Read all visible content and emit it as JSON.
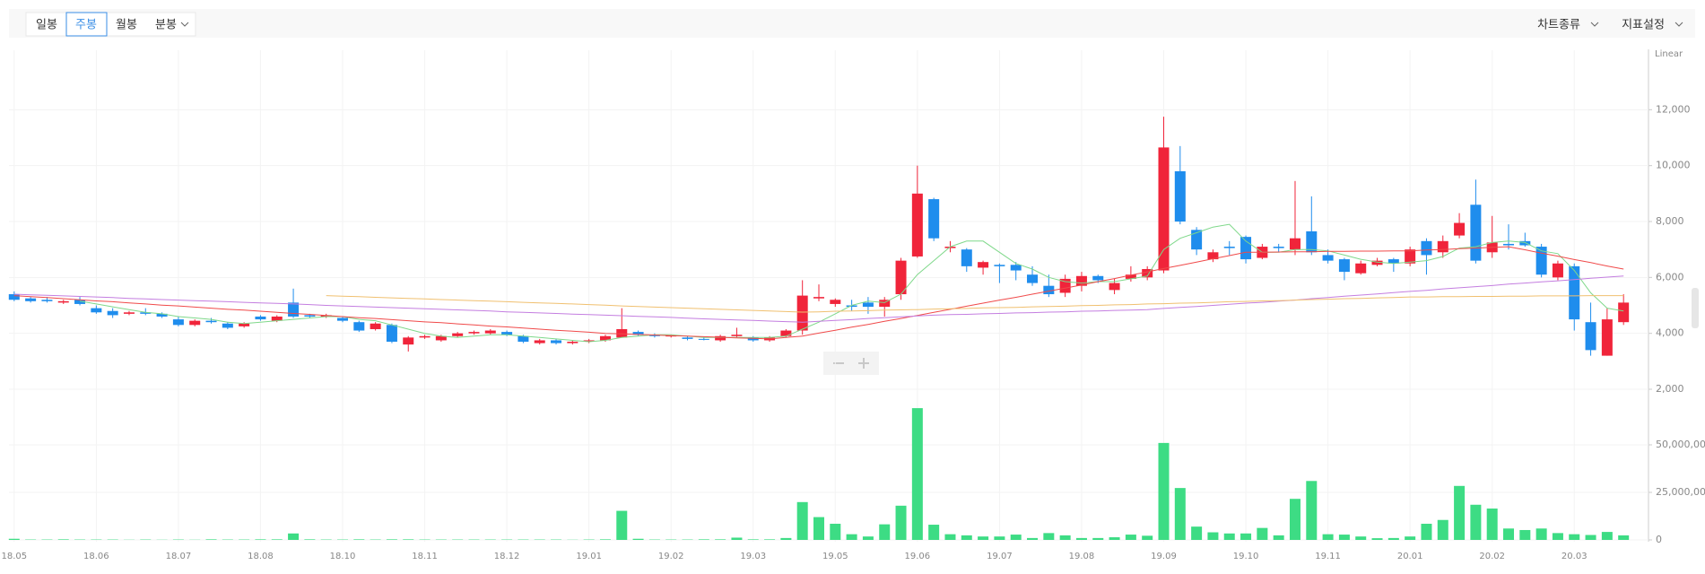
{
  "toolbar": {
    "periods": [
      "일봉",
      "주봉",
      "월봉",
      "분봉"
    ],
    "active": 1,
    "menus": [
      "차트종류",
      "지표설정"
    ]
  },
  "chart_data": [
    {
      "type": "candlestick",
      "scale_label": "Linear",
      "up_color": "#f0243a",
      "down_color": "#1f8ded",
      "open": [
        5400,
        5250,
        5200,
        5100,
        5200,
        4900,
        4800,
        4700,
        4750,
        4700,
        4500,
        4300,
        4450,
        4350,
        4250,
        4600,
        4450,
        5100,
        4650,
        4600,
        4550,
        4400,
        4150,
        4300,
        3600,
        3850,
        3750,
        3900,
        4000,
        4000,
        4050,
        3900,
        3650,
        3750,
        3650,
        3700,
        3750,
        3850,
        4050,
        3950,
        3900,
        3850,
        3800,
        3750,
        3900,
        3850,
        3750,
        3900,
        4100,
        5250,
        5050,
        5000,
        5100,
        4950,
        5400,
        6750,
        8800,
        7050,
        7000,
        6350,
        6450,
        6450,
        6100,
        5700,
        5450,
        5700,
        6050,
        5550,
        5950,
        6000,
        6250,
        9800,
        7700,
        6650,
        7100,
        7450,
        6700,
        7100,
        7000,
        7650,
        6800,
        6650,
        6150,
        6450,
        6650,
        6500,
        7300,
        6900,
        7500,
        8600,
        6900,
        7200,
        7300,
        7100,
        6000,
        6400,
        4400,
        3200,
        4400
      ],
      "high": [
        5500,
        5300,
        5300,
        5200,
        5300,
        5000,
        4900,
        4800,
        4900,
        4750,
        4600,
        4500,
        4550,
        4400,
        4400,
        4650,
        4650,
        5600,
        4700,
        4700,
        4600,
        4450,
        4400,
        4350,
        3900,
        3950,
        3950,
        4050,
        4100,
        4150,
        4100,
        3950,
        3800,
        3800,
        3750,
        3800,
        3950,
        4900,
        4100,
        4000,
        3950,
        3900,
        3850,
        3950,
        4200,
        3900,
        3900,
        4150,
        5900,
        5750,
        5250,
        5200,
        5300,
        5300,
        6700,
        10000,
        8850,
        7300,
        7050,
        6600,
        6500,
        6550,
        6400,
        6100,
        6100,
        6200,
        6100,
        5950,
        6400,
        6400,
        11750,
        10700,
        7800,
        7000,
        7300,
        7500,
        7200,
        7200,
        9450,
        8900,
        7000,
        6700,
        6600,
        6700,
        6700,
        7100,
        7400,
        7500,
        8300,
        9500,
        8200,
        7900,
        7600,
        7200,
        6600,
        6500,
        5100,
        4900,
        5400
      ],
      "low": [
        5150,
        5100,
        5100,
        5050,
        5000,
        4700,
        4550,
        4650,
        4650,
        4550,
        4250,
        4250,
        4350,
        4150,
        4200,
        4450,
        4400,
        4550,
        4550,
        4550,
        4400,
        4050,
        4100,
        3650,
        3350,
        3800,
        3700,
        3850,
        3950,
        3950,
        3900,
        3650,
        3600,
        3600,
        3600,
        3650,
        3700,
        3850,
        3900,
        3850,
        3850,
        3750,
        3750,
        3700,
        3850,
        3700,
        3700,
        3850,
        3950,
        5150,
        4950,
        4800,
        4700,
        4600,
        5200,
        6700,
        7300,
        6900,
        6200,
        6100,
        5800,
        5900,
        5700,
        5300,
        5300,
        5500,
        5800,
        5400,
        5850,
        5900,
        6150,
        7900,
        6800,
        6550,
        6800,
        6500,
        6650,
        6900,
        6800,
        6800,
        6500,
        5900,
        6100,
        6400,
        6200,
        6400,
        6100,
        6700,
        7400,
        6500,
        6700,
        7000,
        7100,
        6000,
        5900,
        4100,
        3200,
        3200,
        4300
      ],
      "close": [
        5200,
        5150,
        5150,
        5150,
        5050,
        4750,
        4650,
        4750,
        4700,
        4600,
        4300,
        4450,
        4400,
        4200,
        4350,
        4500,
        4600,
        4600,
        4600,
        4650,
        4450,
        4100,
        4350,
        3700,
        3850,
        3900,
        3900,
        4000,
        4050,
        4100,
        3950,
        3700,
        3750,
        3650,
        3700,
        3750,
        3900,
        4150,
        3950,
        3900,
        3920,
        3800,
        3780,
        3900,
        3950,
        3750,
        3850,
        4100,
        5350,
        5300,
        5200,
        4950,
        4950,
        5200,
        6600,
        9000,
        7400,
        7100,
        6400,
        6550,
        6400,
        6250,
        5800,
        5400,
        5950,
        6050,
        5900,
        5800,
        6100,
        6300,
        10650,
        8000,
        7000,
        6900,
        7050,
        6650,
        7100,
        7050,
        7400,
        6900,
        6600,
        6200,
        6500,
        6600,
        6500,
        7000,
        6800,
        7300,
        7950,
        6600,
        7250,
        7150,
        7150,
        6100,
        6500,
        4500,
        3400,
        4500,
        5100
      ],
      "lines": [
        {
          "color": "#7fd88a",
          "values": [
            null,
            null,
            null,
            null,
            5150,
            5050,
            4950,
            4850,
            4750,
            4700,
            4600,
            4550,
            4500,
            4400,
            4350,
            4400,
            4450,
            4500,
            4550,
            4600,
            4600,
            4500,
            4450,
            4300,
            4150,
            4000,
            3900,
            3850,
            3900,
            3950,
            3950,
            3900,
            3850,
            3800,
            3750,
            3700,
            3750,
            3850,
            3900,
            3950,
            3950,
            3900,
            3850,
            3850,
            3850,
            3850,
            3850,
            3900,
            4150,
            4400,
            4700,
            5000,
            5150,
            5100,
            5400,
            6100,
            6600,
            7100,
            7300,
            7300,
            6900,
            6500,
            6300,
            6000,
            5850,
            5800,
            5850,
            5850,
            5950,
            6050,
            7000,
            7400,
            7600,
            7800,
            7900,
            7300,
            6900,
            6900,
            7000,
            7000,
            6950,
            6800,
            6650,
            6550,
            6500,
            6550,
            6600,
            6750,
            7050,
            7100,
            7250,
            7300,
            7250,
            6950,
            6850,
            6250,
            5450,
            4900,
            4800
          ]
        },
        {
          "color": "#f04a4a",
          "values": [
            5350,
            5310,
            5280,
            5240,
            5200,
            5160,
            5130,
            5090,
            5050,
            5010,
            4980,
            4940,
            4900,
            4860,
            4830,
            4790,
            4750,
            4710,
            4680,
            4640,
            4600,
            4560,
            4530,
            4490,
            4450,
            4410,
            4380,
            4340,
            4300,
            4260,
            4230,
            4190,
            4150,
            4110,
            4080,
            4040,
            4000,
            3980,
            3960,
            3940,
            3920,
            3900,
            3880,
            3860,
            3840,
            3820,
            3800,
            3850,
            3900,
            4010,
            4110,
            4220,
            4320,
            4430,
            4530,
            4640,
            4750,
            4860,
            4970,
            5080,
            5190,
            5290,
            5400,
            5510,
            5620,
            5730,
            5850,
            5960,
            6080,
            6200,
            6320,
            6430,
            6550,
            6670,
            6780,
            6900,
            6900,
            6910,
            6920,
            6920,
            6930,
            6930,
            6940,
            6940,
            6950,
            6950,
            6980,
            7000,
            7030,
            7050,
            7080,
            7100,
            6990,
            6870,
            6760,
            6640,
            6530,
            6410,
            6300
          ]
        },
        {
          "color": "#c47ee0",
          "values": [
            5400,
            5380,
            5360,
            5340,
            5320,
            5300,
            5280,
            5250,
            5230,
            5210,
            5190,
            5170,
            5150,
            5130,
            5110,
            5090,
            5070,
            5050,
            5030,
            5000,
            4980,
            4960,
            4940,
            4920,
            4900,
            4880,
            4860,
            4840,
            4820,
            4800,
            4770,
            4750,
            4730,
            4710,
            4690,
            4670,
            4650,
            4630,
            4610,
            4590,
            4570,
            4540,
            4520,
            4500,
            4480,
            4460,
            4440,
            4420,
            4400,
            4430,
            4460,
            4490,
            4530,
            4560,
            4590,
            4620,
            4650,
            4670,
            4680,
            4700,
            4710,
            4730,
            4740,
            4760,
            4770,
            4790,
            4800,
            4820,
            4830,
            4850,
            4890,
            4930,
            4960,
            5000,
            5040,
            5080,
            5110,
            5150,
            5190,
            5240,
            5280,
            5330,
            5370,
            5410,
            5460,
            5500,
            5540,
            5590,
            5630,
            5670,
            5710,
            5760,
            5800,
            5840,
            5880,
            5920,
            5970,
            6010,
            6050
          ]
        },
        {
          "color": "#f0c070",
          "values": [
            null,
            null,
            null,
            null,
            null,
            null,
            null,
            null,
            null,
            null,
            null,
            null,
            null,
            null,
            null,
            null,
            null,
            null,
            null,
            5350,
            5330,
            5310,
            5290,
            5270,
            5250,
            5230,
            5210,
            5190,
            5170,
            5150,
            5130,
            5110,
            5090,
            5070,
            5050,
            5030,
            5010,
            4980,
            4960,
            4940,
            4920,
            4900,
            4880,
            4860,
            4840,
            4820,
            4800,
            4780,
            4760,
            4770,
            4790,
            4800,
            4810,
            4830,
            4840,
            4850,
            4870,
            4880,
            4890,
            4910,
            4920,
            4930,
            4950,
            4960,
            4970,
            4990,
            5000,
            5020,
            5030,
            5050,
            5060,
            5080,
            5090,
            5110,
            5130,
            5140,
            5160,
            5170,
            5190,
            5210,
            5220,
            5240,
            5250,
            5270,
            5280,
            5300,
            5300,
            5310,
            5310,
            5320,
            5320,
            5330,
            5330,
            5340,
            5340,
            5340,
            5350,
            5350,
            5350
          ]
        }
      ],
      "ylim": [
        2000,
        14000
      ],
      "yticks": [
        {
          "value": 2000,
          "label": "2,000"
        },
        {
          "value": 4000,
          "label": "4,000"
        },
        {
          "value": 6000,
          "label": "6,000"
        },
        {
          "value": 8000,
          "label": "8,000"
        },
        {
          "value": 10000,
          "label": "10,000"
        },
        {
          "value": 12000,
          "label": "12,000"
        }
      ],
      "grid": true
    },
    {
      "type": "bar",
      "color": "#3ddc84",
      "categories": [
        "18.05",
        null,
        null,
        null,
        null,
        "18.06",
        null,
        null,
        null,
        null,
        "18.07",
        null,
        null,
        null,
        null,
        "18.08",
        null,
        null,
        null,
        null,
        "18.10",
        null,
        null,
        null,
        null,
        "18.11",
        null,
        null,
        null,
        null,
        "18.12",
        null,
        null,
        null,
        null,
        "19.01",
        null,
        null,
        null,
        null,
        "19.02",
        null,
        null,
        null,
        null,
        "19.03",
        null,
        null,
        null,
        null,
        "19.05",
        null,
        null,
        null,
        null,
        "19.06",
        null,
        null,
        null,
        null,
        "19.07",
        null,
        null,
        null,
        null,
        "19.08",
        null,
        null,
        null,
        null,
        "19.09",
        null,
        null,
        null,
        null,
        "19.10",
        null,
        null,
        null,
        null,
        "19.11",
        null,
        null,
        null,
        null,
        "20.01",
        null,
        null,
        null,
        null,
        "20.02",
        null,
        null,
        null,
        null,
        "20.03",
        null,
        null,
        null
      ],
      "values": [
        600000,
        200000,
        200000,
        300000,
        200000,
        200000,
        200000,
        100000,
        200000,
        100000,
        200000,
        100000,
        300000,
        200000,
        200000,
        300000,
        300000,
        3400000,
        300000,
        200000,
        200000,
        300000,
        200000,
        300000,
        300000,
        200000,
        200000,
        200000,
        200000,
        200000,
        200000,
        200000,
        200000,
        200000,
        100000,
        200000,
        300000,
        15300000,
        600000,
        200000,
        200000,
        200000,
        300000,
        300000,
        1200000,
        300000,
        300000,
        1000000,
        19900000,
        12000000,
        8500000,
        3000000,
        1800000,
        8200000,
        18000000,
        69300000,
        8000000,
        3000000,
        2400000,
        1800000,
        1800000,
        2800000,
        1000000,
        3600000,
        2400000,
        1000000,
        1000000,
        1400000,
        2800000,
        2200000,
        51000000,
        27300000,
        7000000,
        4000000,
        3400000,
        3400000,
        6300000,
        2400000,
        21600000,
        31000000,
        3000000,
        2800000,
        1800000,
        900000,
        1000000,
        1800000,
        8500000,
        10500000,
        28400000,
        18500000,
        16500000,
        6000000,
        5200000,
        6000000,
        3600000,
        3000000,
        2600000,
        4200000,
        2400000
      ],
      "ylim": [
        0,
        75000000
      ],
      "yticks": [
        0,
        {
          "value": 25000000,
          "label": "25,000,000"
        },
        {
          "value": 50000000,
          "label": "50,000,000"
        }
      ],
      "grid": true
    }
  ]
}
